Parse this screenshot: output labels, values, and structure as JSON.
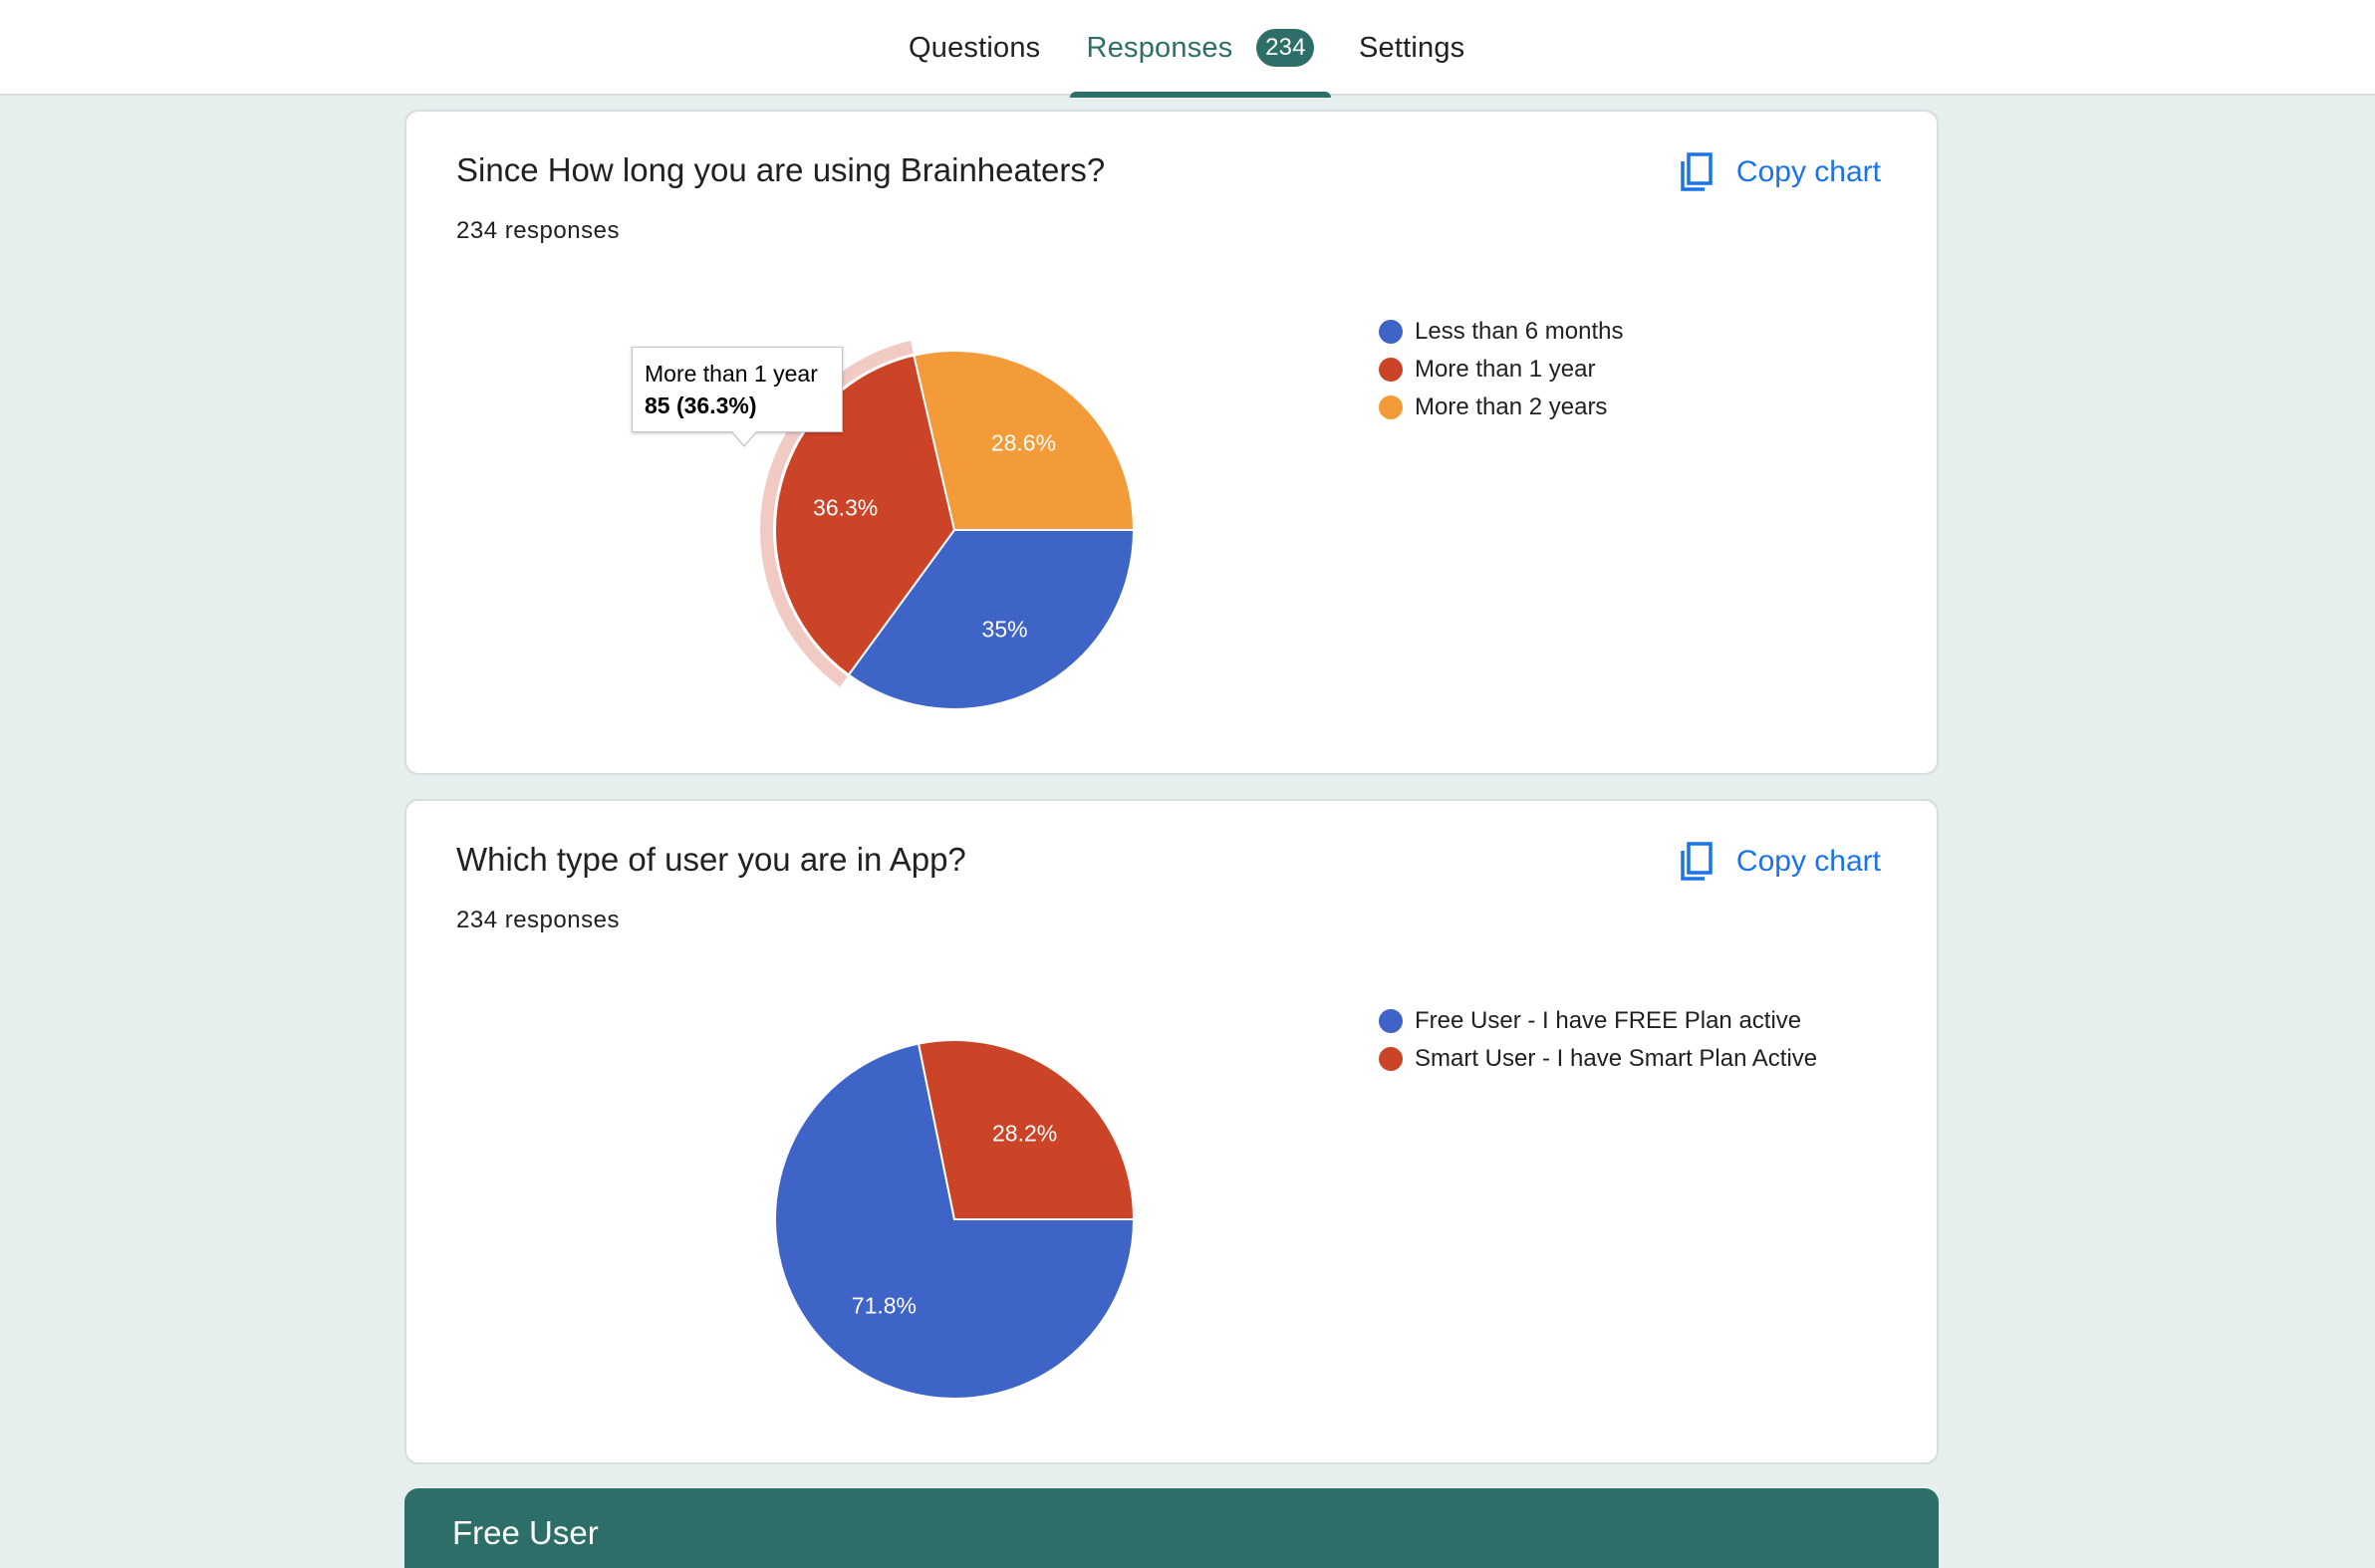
{
  "tabs": [
    {
      "label": "Questions"
    },
    {
      "label": "Responses",
      "badge": "234"
    },
    {
      "label": "Settings"
    }
  ],
  "copy_chart_label": "Copy chart",
  "cards": [
    {
      "title": "Since How long you are using Brainheaters?",
      "responses": "234 responses",
      "tooltip": {
        "label": "More than 1 year",
        "value": "85 (36.3%)"
      }
    },
    {
      "title": "Which type of user you are in App?",
      "responses": "234 responses"
    }
  ],
  "section_header": "Free User",
  "colors": {
    "blue": "#3f64c8",
    "red": "#cc4428",
    "orange": "#f29b38",
    "teal": "#2d6e68",
    "link": "#1a73e8"
  },
  "chart_data": [
    {
      "type": "pie",
      "title": "Since How long you are using Brainheaters?",
      "categories": [
        "Less than 6 months",
        "More than 1 year",
        "More than 2 years"
      ],
      "values": [
        35,
        36.3,
        28.6
      ],
      "labels": [
        "35%",
        "36.3%",
        "28.6%"
      ],
      "colors": [
        "#3f64c8",
        "#cc4428",
        "#f29b38"
      ],
      "highlighted": "More than 1 year",
      "legend": "right"
    },
    {
      "type": "pie",
      "title": "Which type of user you are in App?",
      "categories": [
        "Free User - I have FREE Plan active",
        "Smart User - I have Smart Plan Active"
      ],
      "values": [
        71.8,
        28.2
      ],
      "labels": [
        "71.8%",
        "28.2%"
      ],
      "colors": [
        "#3f64c8",
        "#cc4428"
      ],
      "legend": "right"
    }
  ]
}
